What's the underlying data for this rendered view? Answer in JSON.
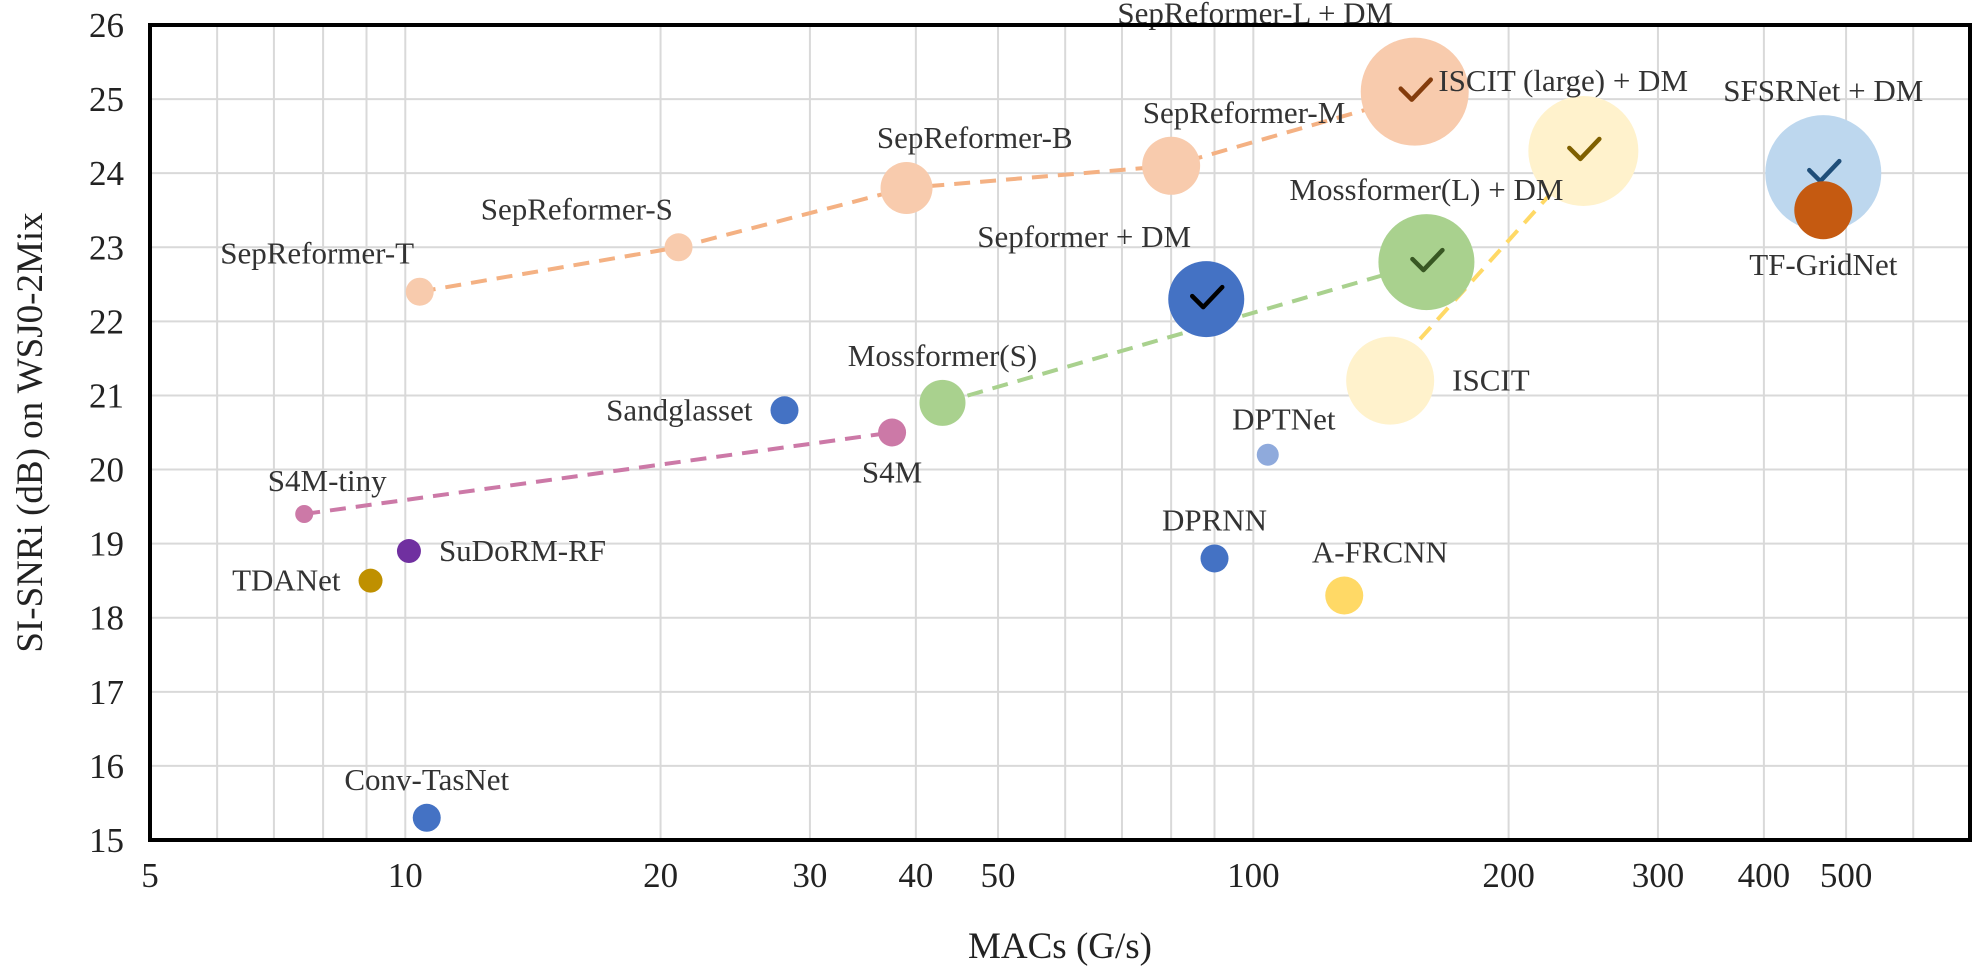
{
  "chart_data": {
    "type": "scatter",
    "title": "",
    "xlabel": "MACs (G/s)",
    "ylabel": "SI-SNRi (dB) on WSJ0-2Mix",
    "xscale": "log",
    "xlim": [
      5,
      700
    ],
    "ylim": [
      15,
      26
    ],
    "xticks": [
      5,
      10,
      20,
      30,
      40,
      50,
      100,
      200,
      300,
      400,
      500
    ],
    "xgrid": [
      5,
      6,
      7,
      8,
      9,
      10,
      20,
      30,
      40,
      50,
      60,
      70,
      80,
      90,
      100,
      200,
      300,
      400,
      500,
      600,
      700
    ],
    "yticks": [
      15,
      16,
      17,
      18,
      19,
      20,
      21,
      22,
      23,
      24,
      25,
      26
    ],
    "grid": true,
    "legend": "none",
    "points": [
      {
        "label": "SepReformer-T",
        "x": 10.4,
        "y": 22.4,
        "size": 14,
        "color": "#f8cbad",
        "labelPos": "above-left"
      },
      {
        "label": "SepReformer-S",
        "x": 21,
        "y": 23.0,
        "size": 14,
        "color": "#f8cbad",
        "labelPos": "above-left"
      },
      {
        "label": "SepReformer-B",
        "x": 39,
        "y": 23.8,
        "size": 26,
        "color": "#f8cbad",
        "labelPos": "above-right"
      },
      {
        "label": "SepReformer-M",
        "x": 80,
        "y": 24.1,
        "size": 29,
        "color": "#f8cbad",
        "labelPos": "above-right"
      },
      {
        "label": "SepReformer-L  + DM",
        "x": 155,
        "y": 25.1,
        "size": 54,
        "color": "#f8cbad",
        "labelPos": "above-left",
        "check": "#843c0c"
      },
      {
        "label": "ISCIT (large) + DM",
        "x": 245,
        "y": 24.3,
        "size": 55,
        "color": "#fff2cc",
        "labelPos": "left-top",
        "check": "#7f6000"
      },
      {
        "label": "SFSRNet + DM",
        "x": 470,
        "y": 24.0,
        "size": 58,
        "color": "#bdd7ee",
        "labelPos": "above",
        "check": "#1f4e79"
      },
      {
        "label": "TF-GridNet",
        "x": 470,
        "y": 23.5,
        "size": 29,
        "color": "#c55a11",
        "labelPos": "below"
      },
      {
        "label": "Mossformer(L) + DM",
        "x": 160,
        "y": 22.8,
        "size": 48,
        "color": "#a9d18e",
        "labelPos": "above",
        "check": "#385723"
      },
      {
        "label": "Sepformer + DM",
        "x": 88,
        "y": 22.3,
        "size": 38,
        "color": "#4472c4",
        "labelPos": "above-left",
        "check": "#000000"
      },
      {
        "label": "ISCIT",
        "x": 145,
        "y": 21.2,
        "size": 44,
        "color": "#fff2cc",
        "labelPos": "right"
      },
      {
        "label": "Mossformer(S)",
        "x": 43,
        "y": 20.9,
        "size": 23,
        "color": "#a9d18e",
        "labelPos": "above"
      },
      {
        "label": "Sandglasset",
        "x": 28,
        "y": 20.8,
        "size": 14,
        "color": "#4472c4",
        "labelPos": "left"
      },
      {
        "label": "S4M",
        "x": 37.5,
        "y": 20.5,
        "size": 14,
        "color": "#cc79a7",
        "labelPos": "below"
      },
      {
        "label": "DPTNet",
        "x": 104,
        "y": 20.2,
        "size": 11,
        "color": "#8faadc",
        "labelPos": "above-right"
      },
      {
        "label": "S4M-tiny",
        "x": 7.6,
        "y": 19.4,
        "size": 9,
        "color": "#cc79a7",
        "labelPos": "above-right"
      },
      {
        "label": "SuDoRM-RF",
        "x": 10.1,
        "y": 18.9,
        "size": 12,
        "color": "#7030a0",
        "labelPos": "right"
      },
      {
        "label": "TDANet",
        "x": 9.1,
        "y": 18.5,
        "size": 12,
        "color": "#bf9000",
        "labelPos": "left"
      },
      {
        "label": "DPRNN",
        "x": 90,
        "y": 18.8,
        "size": 14,
        "color": "#4472c4",
        "labelPos": "above"
      },
      {
        "label": "A-FRCNN",
        "x": 128,
        "y": 18.3,
        "size": 19,
        "color": "#ffd966",
        "labelPos": "above-right"
      },
      {
        "label": "Conv-TasNet",
        "x": 10.6,
        "y": 15.3,
        "size": 14,
        "color": "#4472c4",
        "labelPos": "above"
      }
    ],
    "lines": [
      {
        "color": "#f4b183",
        "points": [
          [
            10.4,
            22.4
          ],
          [
            21,
            23.0
          ],
          [
            39,
            23.8
          ],
          [
            80,
            24.1
          ],
          [
            150,
            25.0
          ]
        ]
      },
      {
        "color": "#a9d18e",
        "points": [
          [
            43,
            20.9
          ],
          [
            150,
            22.7
          ]
        ]
      },
      {
        "color": "#cc79a7",
        "points": [
          [
            7.6,
            19.4
          ],
          [
            37.5,
            20.5
          ]
        ]
      },
      {
        "color": "#ffd966",
        "points": [
          [
            150,
            21.5
          ],
          [
            240,
            24.1
          ]
        ]
      }
    ]
  }
}
